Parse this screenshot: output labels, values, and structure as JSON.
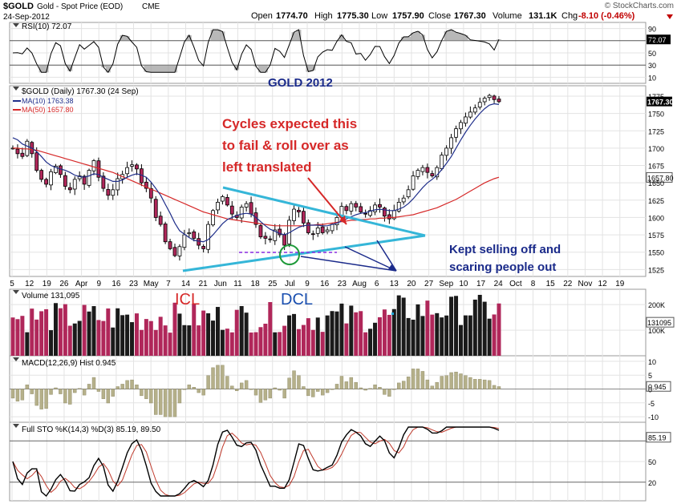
{
  "header": {
    "symbol": "$GOLD",
    "name": "Gold - Spot Price (EOD)",
    "exchange": "CME",
    "date": "24-Sep-2012",
    "brand": "© StockCharts.com",
    "open_label": "Open",
    "open": "1774.70",
    "high_label": "High",
    "high": "1775.30",
    "low_label": "Low",
    "low": "1757.90",
    "close_label": "Close",
    "close": "1767.30",
    "volume_label": "Volume",
    "volume": "131.1K",
    "chg_label": "Chg",
    "chg": "-8.10 (-0.46%)"
  },
  "colors": {
    "bg": "#ffffff",
    "panel_border": "#9a9a9a",
    "grid": "#e3e3e3",
    "price_bar": "#000000",
    "ma10": "#1f2e8a",
    "ma50": "#d62828",
    "vol_up": "#1a1a1a",
    "vol_down": "#b0275a",
    "hist": "#b5b08a",
    "trendline": "#35b6d8",
    "annot_red": "#d62828",
    "annot_navy": "#1a2a8a",
    "annot_blue": "#1a4fb0",
    "stoch_k": "#000000",
    "stoch_d": "#c0392b",
    "support": "#8a2be2",
    "circle": "#1f9a3a"
  },
  "rsi": {
    "label": "RSI(10) 72.07",
    "value_tag": "72.07",
    "ticks": [
      "90",
      "70",
      "50",
      "30",
      "10"
    ]
  },
  "price": {
    "label": "$GOLD (Daily) 1767.30 (24 Sep)",
    "ma10_label": "MA(10) 1763.38",
    "ma50_label": "MA(50) 1657.80",
    "close_tag": "1767.30",
    "ma50_tag": "1657.80",
    "ticks": [
      "1775",
      "1750",
      "1725",
      "1700",
      "1675",
      "1650",
      "1625",
      "1600",
      "1575",
      "1550",
      "1525"
    ]
  },
  "annotations": {
    "title": "GOLD 2012",
    "cycles_line1": "Cycles expected this",
    "cycles_line2": "to fail & roll over as",
    "cycles_line3": "left translated",
    "kept_line1": "Kept selling off and",
    "kept_line2": "scaring people out",
    "icl": "ICL",
    "dcl": "DCL"
  },
  "volume": {
    "label": "Volume 131,095",
    "value_tag": "131095",
    "ticks": [
      "200K",
      "100K"
    ]
  },
  "macd": {
    "label": "MACD(12,26,9) Hist 0.945",
    "value_tag": "0.945",
    "ticks": [
      "10",
      "5",
      "0",
      "-5",
      "-10"
    ]
  },
  "stoch": {
    "label": "Full STO %K(14,3) %D(3) 85.19, 89.50",
    "value_tag": "85.19",
    "ticks": [
      "50",
      "20"
    ]
  },
  "x_axis": {
    "labels": [
      "5",
      "12",
      "19",
      "26",
      "Apr",
      "9",
      "16",
      "23",
      "May",
      "7",
      "14",
      "21",
      "Jun",
      "11",
      "18",
      "25",
      "Jul",
      "9",
      "16",
      "23",
      "Aug",
      "6",
      "13",
      "20",
      "27",
      "Sep",
      "10",
      "17",
      "24",
      "Oct",
      "8",
      "15",
      "22",
      "Nov",
      "12",
      "19"
    ]
  },
  "chart_data": {
    "type": "line",
    "title": "GOLD 2012",
    "period": "Daily",
    "x_labels": [
      "5",
      "12",
      "19",
      "26",
      "Apr",
      "9",
      "16",
      "23",
      "May",
      "7",
      "14",
      "21",
      "Jun",
      "11",
      "18",
      "25",
      "Jul",
      "9",
      "16",
      "23",
      "Aug",
      "6",
      "13",
      "20",
      "27",
      "Sep",
      "10",
      "17",
      "24",
      "Oct",
      "8",
      "15",
      "22",
      "Nov",
      "12",
      "19"
    ],
    "ylim": [
      1515,
      1790
    ],
    "series": [
      {
        "name": "$GOLD",
        "values": [
          1700,
          1692,
          1688,
          1710,
          1692,
          1668,
          1655,
          1648,
          1666,
          1674,
          1662,
          1645,
          1640,
          1655,
          1660,
          1648,
          1668,
          1682,
          1658,
          1642,
          1632,
          1640,
          1656,
          1662,
          1672,
          1676,
          1670,
          1650,
          1642,
          1628,
          1600,
          1590,
          1565,
          1555,
          1545,
          1558,
          1575,
          1578,
          1570,
          1560,
          1555,
          1590,
          1610,
          1622,
          1630,
          1618,
          1605,
          1600,
          1615,
          1620,
          1605,
          1590,
          1572,
          1570,
          1568,
          1582,
          1575,
          1560,
          1596,
          1612,
          1608,
          1592,
          1578,
          1576,
          1585,
          1578,
          1582,
          1590,
          1600,
          1616,
          1610,
          1620,
          1615,
          1608,
          1605,
          1610,
          1618,
          1615,
          1602,
          1598,
          1610,
          1622,
          1628,
          1640,
          1660,
          1668,
          1672,
          1665,
          1660,
          1672,
          1690,
          1700,
          1715,
          1728,
          1737,
          1745,
          1752,
          1758,
          1766,
          1772,
          1776,
          1770,
          1767
        ]
      },
      {
        "name": "MA(10)",
        "values": [
          1715,
          1712,
          1706,
          1703,
          1700,
          1695,
          1688,
          1680,
          1675,
          1672,
          1670,
          1668,
          1665,
          1661,
          1659,
          1658,
          1660,
          1663,
          1662,
          1658,
          1655,
          1652,
          1652,
          1654,
          1658,
          1661,
          1663,
          1661,
          1658,
          1651,
          1642,
          1632,
          1619,
          1606,
          1592,
          1581,
          1576,
          1571,
          1567,
          1566,
          1565,
          1568,
          1575,
          1583,
          1591,
          1597,
          1600,
          1603,
          1605,
          1606,
          1605,
          1600,
          1594,
          1588,
          1583,
          1580,
          1577,
          1575,
          1578,
          1582,
          1586,
          1588,
          1589,
          1589,
          1589,
          1588,
          1588,
          1590,
          1592,
          1595,
          1598,
          1601,
          1604,
          1606,
          1607,
          1609,
          1611,
          1612,
          1611,
          1610,
          1610,
          1612,
          1615,
          1620,
          1627,
          1635,
          1643,
          1650,
          1655,
          1661,
          1669,
          1678,
          1688,
          1700,
          1712,
          1723,
          1733,
          1742,
          1750,
          1757,
          1762,
          1764,
          1763
        ]
      },
      {
        "name": "MA(50)",
        "values": [
          1700,
          1700,
          1699,
          1699,
          1698,
          1697,
          1695,
          1693,
          1691,
          1689,
          1687,
          1685,
          1683,
          1681,
          1679,
          1677,
          1675,
          1673,
          1671,
          1669,
          1667,
          1665,
          1662,
          1659,
          1656,
          1653,
          1650,
          1647,
          1644,
          1641,
          1638,
          1635,
          1632,
          1629,
          1626,
          1623,
          1620,
          1617,
          1614,
          1611,
          1608,
          1606,
          1604,
          1602,
          1600,
          1598,
          1597,
          1596,
          1595,
          1594,
          1593,
          1592,
          1591,
          1590,
          1589,
          1588,
          1588,
          1588,
          1588,
          1588,
          1588,
          1588,
          1589,
          1589,
          1590,
          1590,
          1591,
          1592,
          1593,
          1594,
          1595,
          1596,
          1596,
          1597,
          1597,
          1598,
          1598,
          1599,
          1599,
          1600,
          1600,
          1601,
          1602,
          1603,
          1604,
          1606,
          1608,
          1610,
          1612,
          1614,
          1617,
          1620,
          1623,
          1626,
          1630,
          1634,
          1638,
          1642,
          1646,
          1650,
          1653,
          1656,
          1658
        ]
      }
    ]
  }
}
